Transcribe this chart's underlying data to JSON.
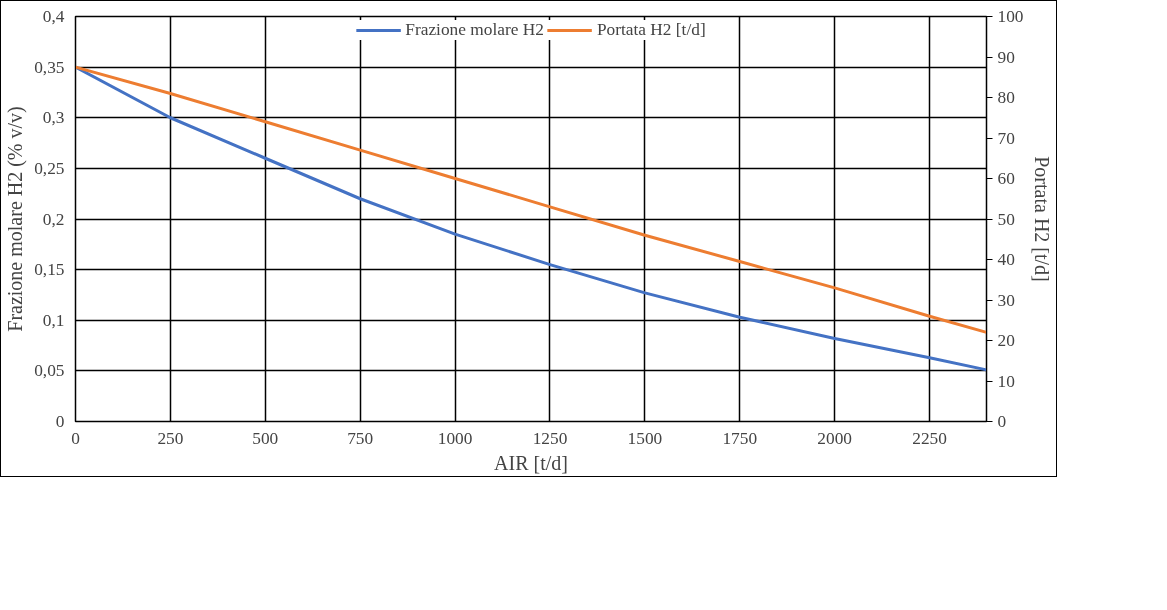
{
  "chart_data": {
    "type": "line",
    "xlabel": "AIR [t/d]",
    "ylabel": "Frazione molare H2 (% v/v)",
    "y2label": "Portata H2 [t/d]",
    "x": [
      0,
      250,
      500,
      750,
      1000,
      1250,
      1500,
      1750,
      2000,
      2250,
      2400
    ],
    "series": [
      {
        "name": "Frazione molare H2",
        "color": "#4472c4",
        "values": [
          0.35,
          0.3,
          0.26,
          0.22,
          0.185,
          0.155,
          0.127,
          0.103,
          0.082,
          0.063,
          0.051
        ]
      },
      {
        "name": "Portata H2 [t/d]",
        "color": "#ed7d31",
        "axis": "y2",
        "values": [
          87.5,
          81,
          74,
          67,
          60,
          53,
          46,
          39.5,
          33,
          26,
          22
        ]
      }
    ],
    "xlim": [
      0,
      2400
    ],
    "xticks": [
      0,
      250,
      500,
      750,
      1000,
      1250,
      1500,
      1750,
      2000,
      2250
    ],
    "ylim": [
      0,
      0.4
    ],
    "yticks": [
      {
        "value": 0,
        "label": "0"
      },
      {
        "value": 0.05,
        "label": "0,05"
      },
      {
        "value": 0.1,
        "label": "0,1"
      },
      {
        "value": 0.15,
        "label": "0,15"
      },
      {
        "value": 0.2,
        "label": "0,2"
      },
      {
        "value": 0.25,
        "label": "0,25"
      },
      {
        "value": 0.3,
        "label": "0,3"
      },
      {
        "value": 0.35,
        "label": "0,35"
      },
      {
        "value": 0.4,
        "label": "0,4"
      }
    ],
    "y2lim": [
      0,
      100
    ],
    "y2ticks": [
      0,
      10,
      20,
      30,
      40,
      50,
      60,
      70,
      80,
      90,
      100
    ],
    "grid": true,
    "legend": "top",
    "marker": "none",
    "line_style": "solid"
  }
}
